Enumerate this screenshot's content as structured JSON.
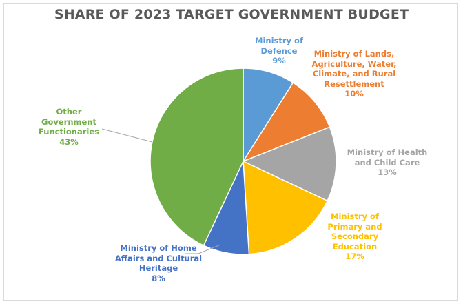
{
  "chart_data": {
    "type": "pie",
    "title": "SHARE OF 2023 TARGET GOVERNMENT BUDGET",
    "slices": [
      {
        "label": "Ministry of Defence",
        "value": 9,
        "value_label": "9%",
        "color": "#5b9bd5"
      },
      {
        "label": "Ministry of Lands, Agriculture, Water, Climate, and Rural Resettlement",
        "value": 10,
        "value_label": "10%",
        "color": "#ed7d31"
      },
      {
        "label": "Ministry of Health and Child Care",
        "value": 13,
        "value_label": "13%",
        "color": "#a5a5a5"
      },
      {
        "label": "Ministry of Primary and Secondary Education",
        "value": 17,
        "value_label": "17%",
        "color": "#ffc000"
      },
      {
        "label": "Ministry of Home Affairs and Cultural Heritage",
        "value": 8,
        "value_label": "8%",
        "color": "#4472c4"
      },
      {
        "label": "Other Government Functionaries",
        "value": 43,
        "value_label": "43%",
        "color": "#70ad47"
      }
    ]
  }
}
